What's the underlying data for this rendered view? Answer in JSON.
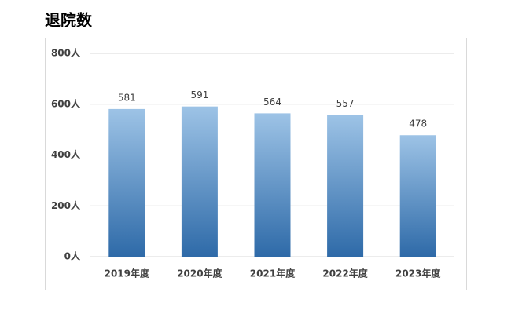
{
  "chart_data": {
    "type": "bar",
    "title": "退院数",
    "categories": [
      "2019年度",
      "2020年度",
      "2021年度",
      "2022年度",
      "2023年度"
    ],
    "values": [
      581,
      591,
      564,
      557,
      478
    ],
    "gradient": [
      "#9dc3e6",
      "#2e6aa8"
    ],
    "ylim": [
      0,
      800
    ],
    "yticks": [
      {
        "value": 0,
        "label": "0人"
      },
      {
        "value": 200,
        "label": "200人"
      },
      {
        "value": 400,
        "label": "400人"
      },
      {
        "value": 600,
        "label": "600人"
      },
      {
        "value": 800,
        "label": "800人"
      }
    ],
    "grid": true
  }
}
